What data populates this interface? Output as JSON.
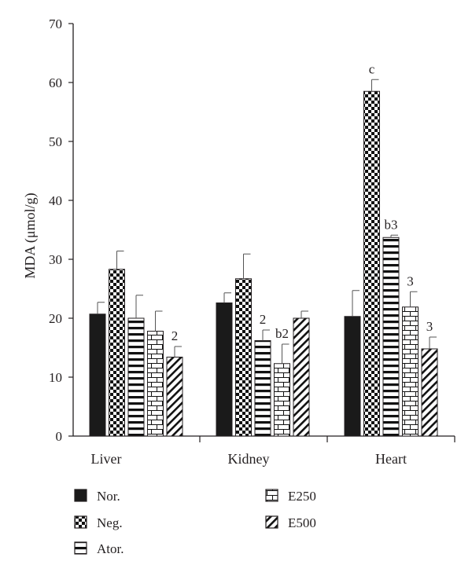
{
  "chart_data": {
    "type": "bar",
    "title": "",
    "xlabel": "",
    "ylabel": "MDA (μmol/g)",
    "ylim": [
      0,
      70
    ],
    "yticks": [
      "0",
      "10",
      "20",
      "30",
      "40",
      "50",
      "60",
      "70"
    ],
    "ytick_values": [
      0,
      10,
      20,
      30,
      40,
      50,
      60,
      70
    ],
    "categories": [
      "Liver",
      "Kidney",
      "Heart"
    ],
    "legend_position": "bottom",
    "series": [
      {
        "name": "Nor.",
        "pattern": "solid-black",
        "values": [
          20.7,
          22.6,
          20.3
        ],
        "errors": [
          2.0,
          1.7,
          4.4
        ],
        "labels": [
          "",
          "",
          ""
        ]
      },
      {
        "name": "Neg.",
        "pattern": "checkerboard",
        "values": [
          28.3,
          26.7,
          58.5
        ],
        "errors": [
          3.1,
          4.2,
          2.0
        ],
        "labels": [
          "",
          "",
          "c"
        ]
      },
      {
        "name": "Ator.",
        "pattern": "horizontal-lines",
        "values": [
          20.0,
          16.2,
          33.7
        ],
        "errors": [
          3.9,
          1.8,
          0.4
        ],
        "labels": [
          "",
          "2",
          "b3"
        ]
      },
      {
        "name": "E250",
        "pattern": "brick",
        "values": [
          17.8,
          12.3,
          21.9
        ],
        "errors": [
          3.4,
          3.3,
          2.6
        ],
        "labels": [
          "",
          "b2",
          "3"
        ]
      },
      {
        "name": "E500",
        "pattern": "diagonal-lines",
        "values": [
          13.4,
          20.0,
          14.8
        ],
        "errors": [
          1.8,
          1.2,
          2.0
        ],
        "labels": [
          "2",
          "",
          "3"
        ]
      }
    ]
  }
}
